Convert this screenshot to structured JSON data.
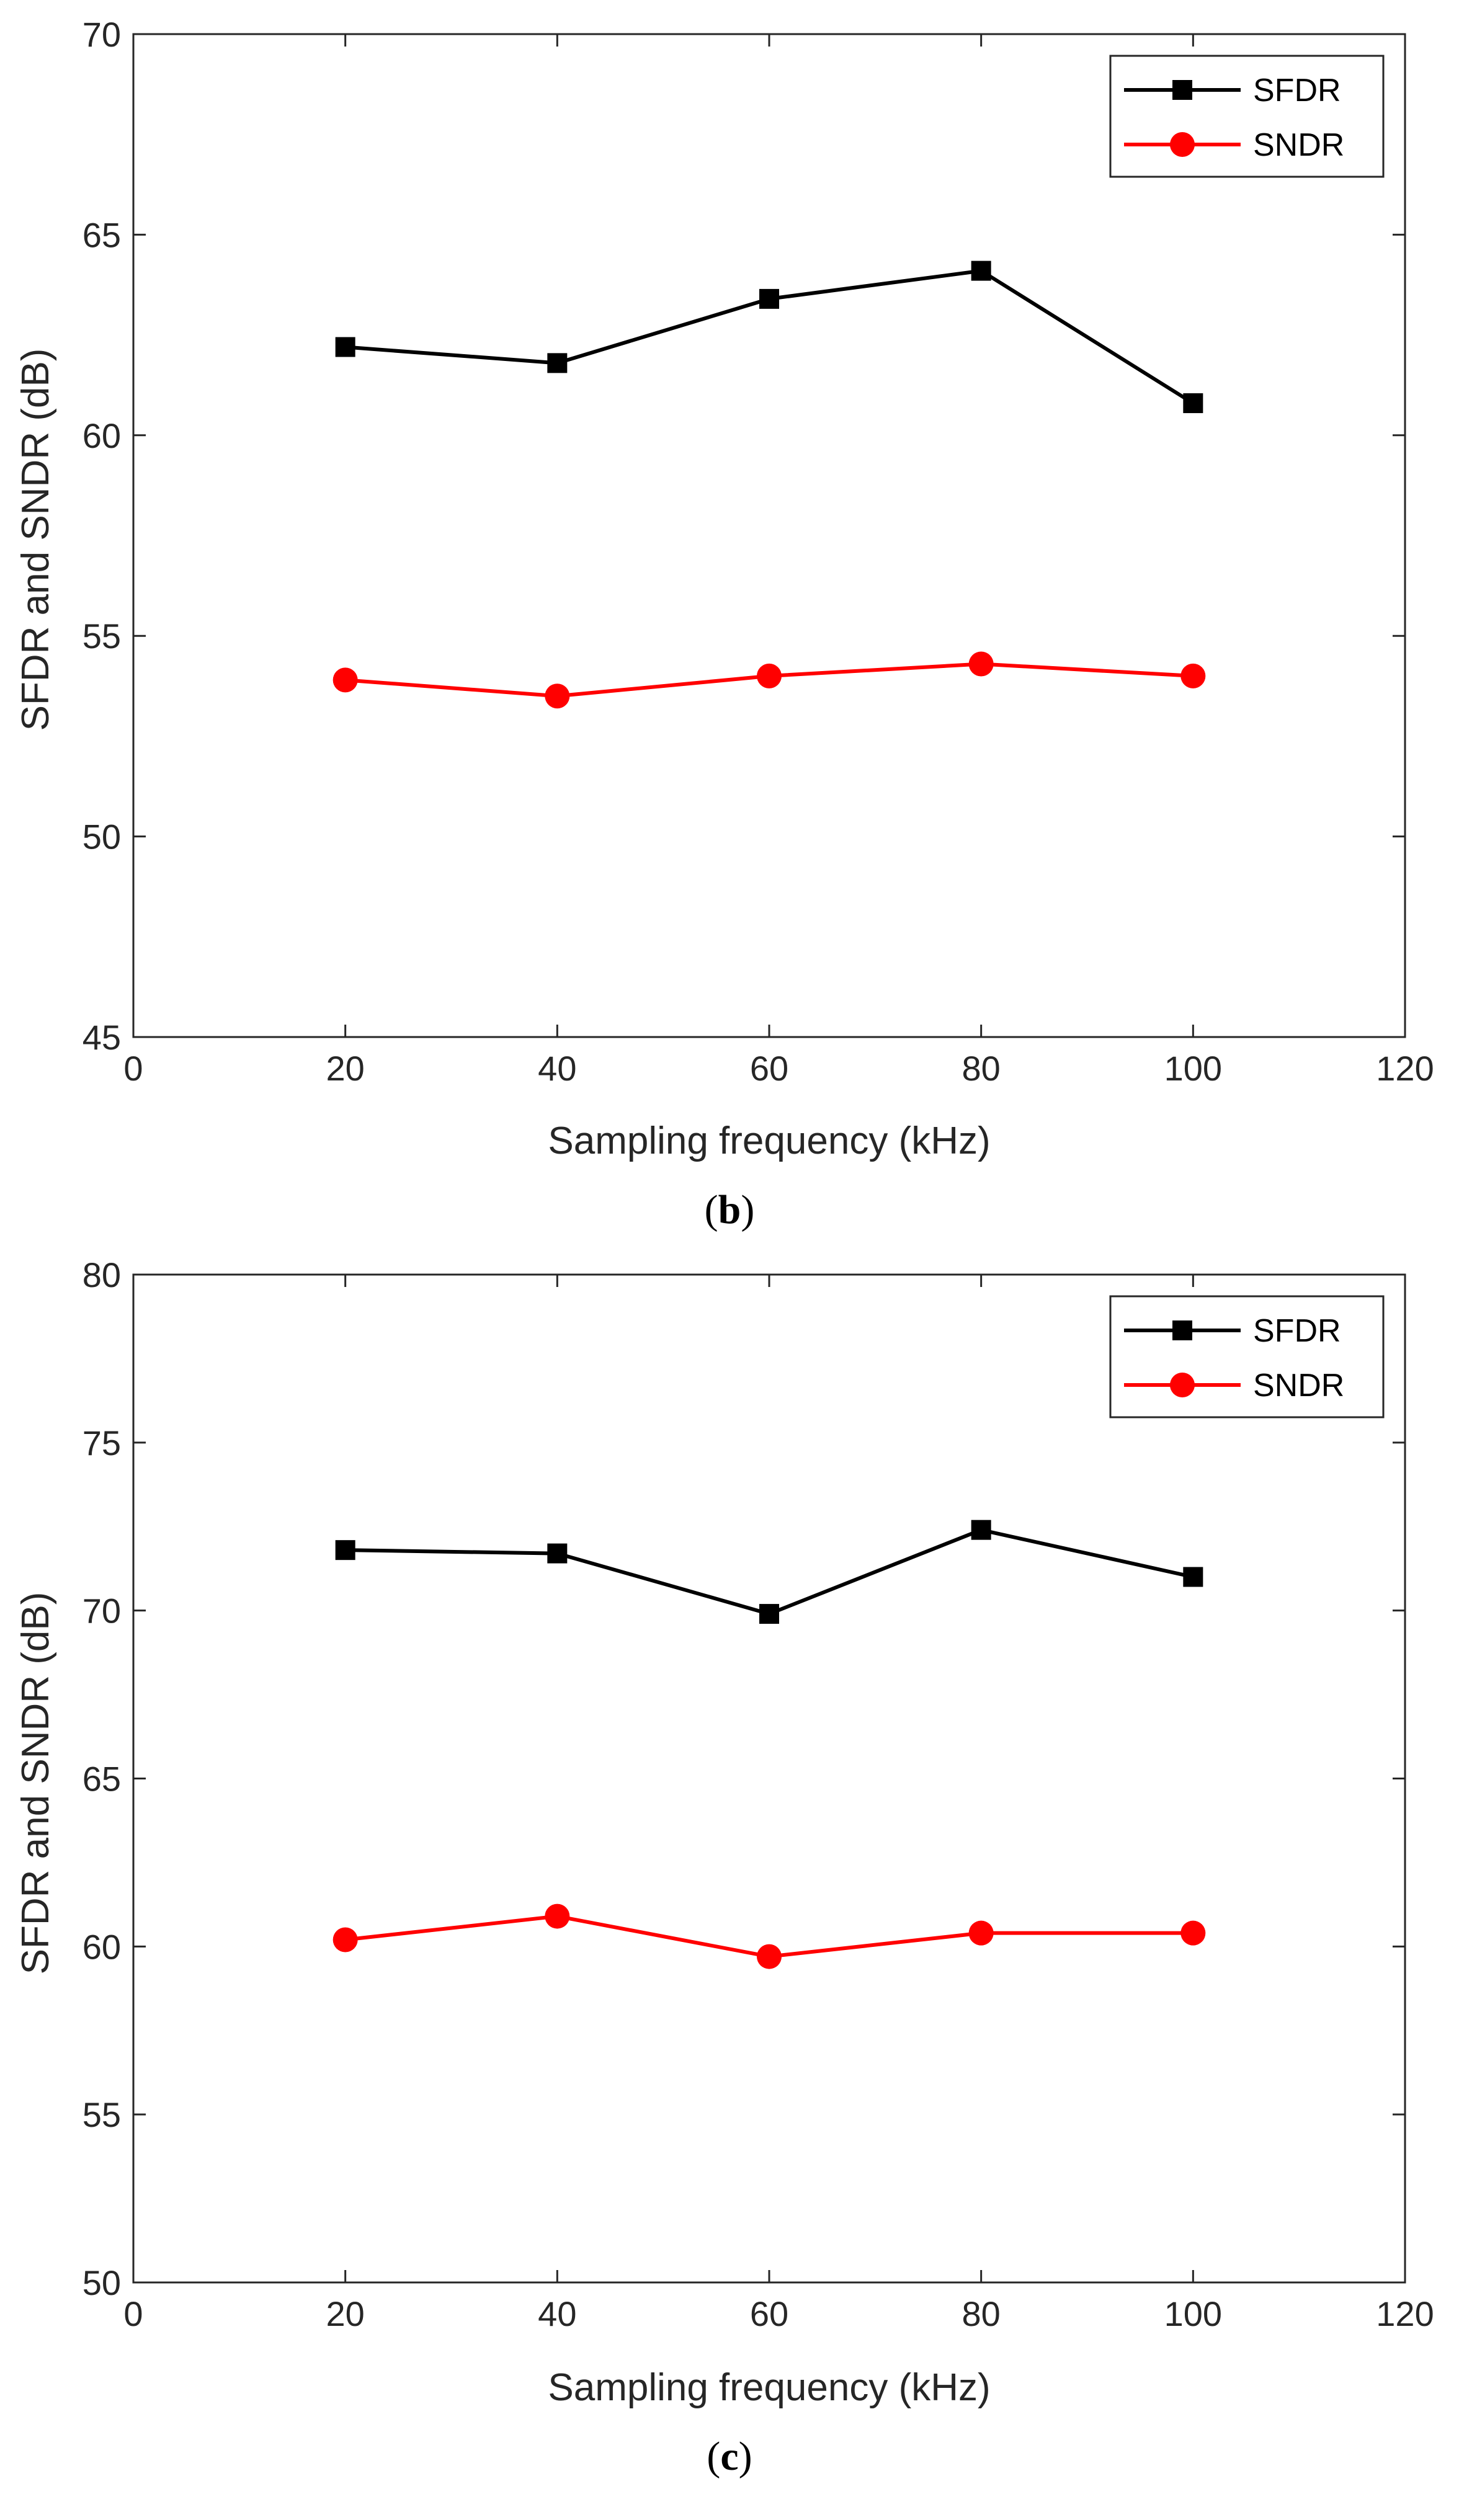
{
  "chart_data": [
    {
      "type": "line",
      "panel_label": "b",
      "x": [
        20,
        40,
        60,
        80,
        100
      ],
      "series": [
        {
          "name": "SFDR",
          "values": [
            62.2,
            61.8,
            63.4,
            64.1,
            60.8
          ],
          "color": "#000000",
          "marker": "square"
        },
        {
          "name": "SNDR",
          "values": [
            53.9,
            53.5,
            54.0,
            54.3,
            54.0
          ],
          "color": "#ff0000",
          "marker": "circle"
        }
      ],
      "title": "",
      "xlabel": "Sampling frequency (kHz)",
      "ylabel": "SFDR and SNDR (dB)",
      "xlim": [
        0,
        120
      ],
      "ylim": [
        45,
        70
      ],
      "xticks": [
        0,
        20,
        40,
        60,
        80,
        100,
        120
      ],
      "yticks": [
        45,
        50,
        55,
        60,
        65,
        70
      ],
      "grid": false,
      "legend": "top-right"
    },
    {
      "type": "line",
      "panel_label": "c",
      "x": [
        20,
        40,
        60,
        80,
        100
      ],
      "series": [
        {
          "name": "SFDR",
          "values": [
            71.8,
            71.7,
            69.9,
            72.4,
            71.0
          ],
          "color": "#000000",
          "marker": "square"
        },
        {
          "name": "SNDR",
          "values": [
            60.2,
            60.9,
            59.7,
            60.4,
            60.4
          ],
          "color": "#ff0000",
          "marker": "circle"
        }
      ],
      "title": "",
      "xlabel": "Sampling frequency (kHz)",
      "ylabel": "SFDR and SNDR (dB)",
      "xlim": [
        0,
        120
      ],
      "ylim": [
        50,
        80
      ],
      "xticks": [
        0,
        20,
        40,
        60,
        80,
        100,
        120
      ],
      "yticks": [
        50,
        55,
        60,
        65,
        70,
        75,
        80
      ],
      "grid": false,
      "legend": "top-right"
    }
  ]
}
